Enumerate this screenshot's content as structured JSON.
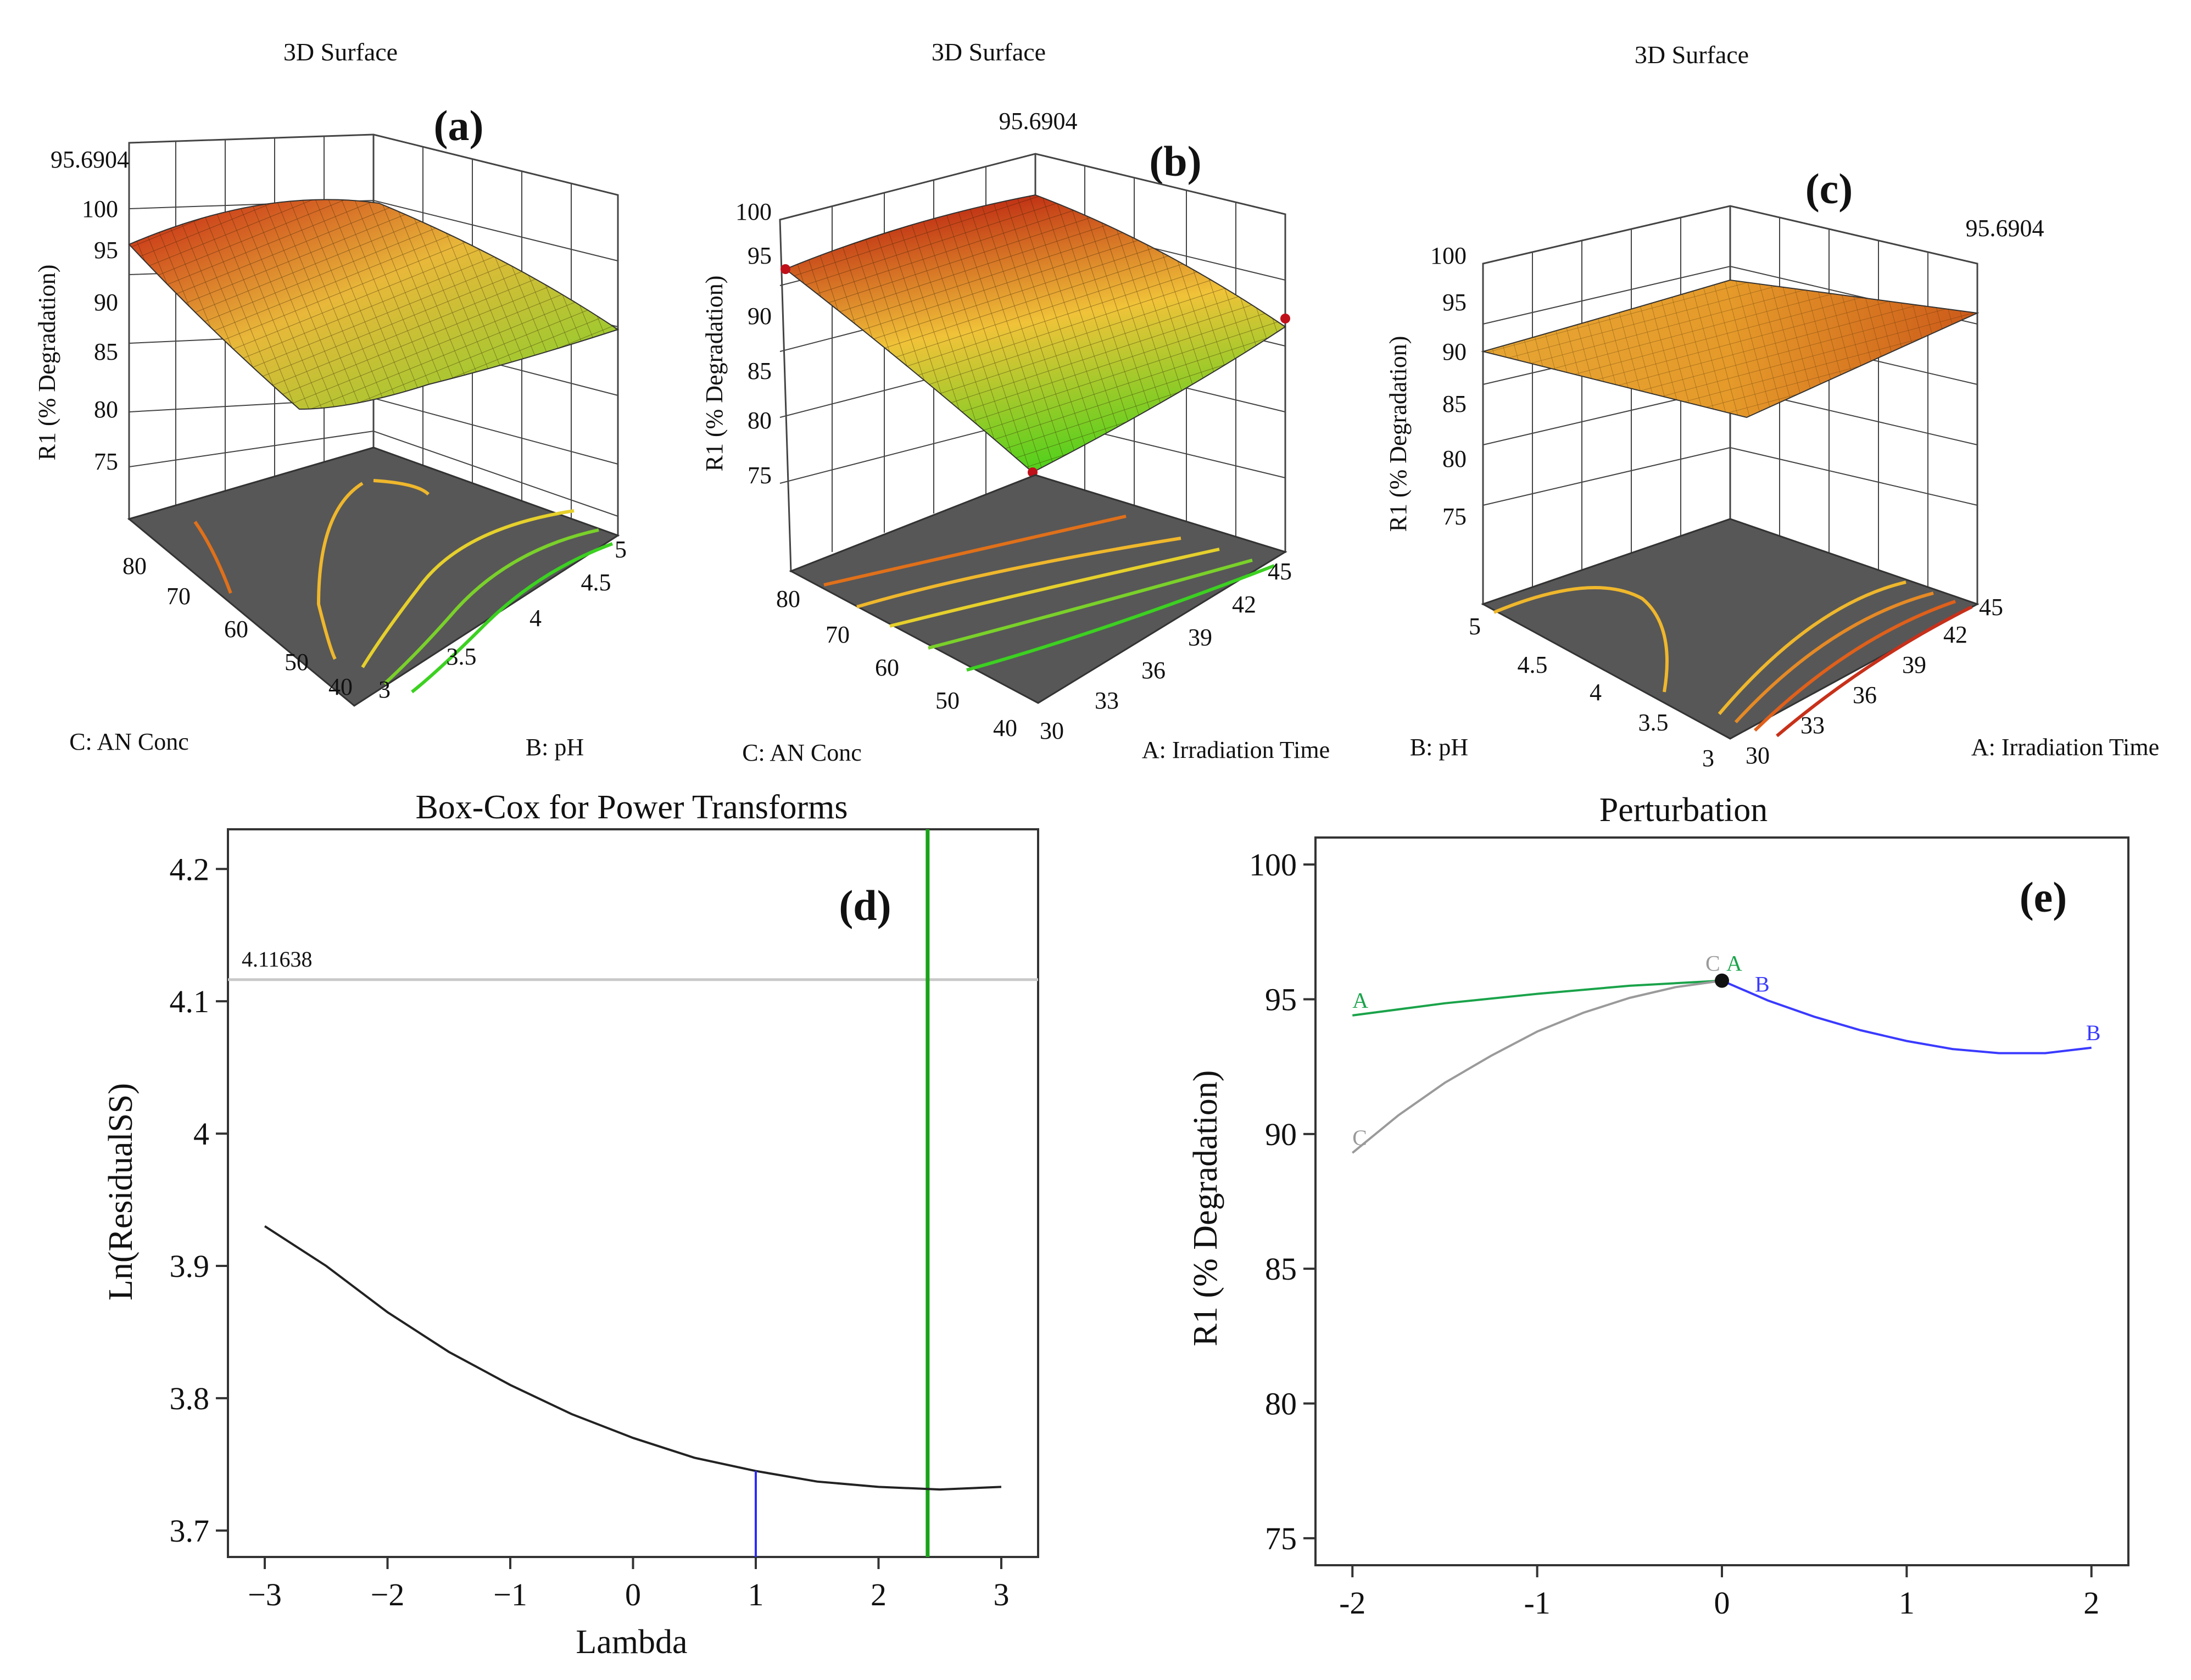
{
  "chart_data": [
    {
      "panel": "(a)",
      "type": "surface3d",
      "title": "3D Surface",
      "zlabel": "R1 (% Degradation)",
      "zticks": [
        75,
        80,
        85,
        90,
        95,
        100
      ],
      "peak_label": "95.6904",
      "left_axis": {
        "label": "C: AN Conc",
        "ticks": [
          "80",
          "70",
          "60",
          "50",
          "40"
        ]
      },
      "right_axis": {
        "label": "B: pH",
        "ticks": [
          "3",
          "3.5",
          "4",
          "4.5",
          "5"
        ]
      },
      "corner_values": {
        "back": 95,
        "left": 94,
        "front": 89,
        "right": 87
      }
    },
    {
      "panel": "(b)",
      "type": "surface3d",
      "title": "3D Surface",
      "zlabel": "R1 (% Degradation)",
      "zticks": [
        75,
        80,
        85,
        90,
        95,
        100
      ],
      "peak_label": "95.6904",
      "left_axis": {
        "label": "C: AN Conc",
        "ticks": [
          "80",
          "70",
          "60",
          "50",
          "40"
        ]
      },
      "right_axis": {
        "label": "A: Irradiation Time",
        "ticks": [
          "30",
          "33",
          "36",
          "39",
          "42",
          "45"
        ]
      },
      "corner_values": {
        "back": 99,
        "left": 94,
        "front": 76,
        "right": 90
      }
    },
    {
      "panel": "(c)",
      "type": "surface3d",
      "title": "3D Surface",
      "zlabel": "R1 (% Degradation)",
      "zticks": [
        75,
        80,
        85,
        90,
        95,
        100
      ],
      "peak_label": "95.6904",
      "left_axis": {
        "label": "B: pH",
        "ticks": [
          "5",
          "4.5",
          "4",
          "3.5",
          "3"
        ]
      },
      "right_axis": {
        "label": "A: Irradiation Time",
        "ticks": [
          "30",
          "33",
          "36",
          "39",
          "42",
          "45"
        ]
      },
      "corner_values": {
        "back": 95,
        "left": 90,
        "front": 90,
        "right": 95
      }
    },
    {
      "panel": "(d)",
      "type": "line",
      "title": "Box-Cox for Power Transforms",
      "xlabel": "Lambda",
      "ylabel": "Ln(ResidualSS)",
      "xlim": [
        -3.3,
        3.3
      ],
      "ylim": [
        3.68,
        4.23
      ],
      "xticks": [
        -3,
        -2,
        -1,
        0,
        1,
        2,
        3
      ],
      "xtick_labels": [
        "−3",
        "−2",
        "−1",
        "0",
        "1",
        "2",
        "3"
      ],
      "yticks": [
        3.7,
        3.8,
        3.9,
        4,
        4.1,
        4.2
      ],
      "ytick_labels": [
        "3.7",
        "3.8",
        "3.9",
        "4",
        "4.1",
        "4.2"
      ],
      "reference_line": {
        "y": 4.11638,
        "label": "4.11638",
        "color": "#c8c8c8"
      },
      "current_lambda": {
        "x": 1,
        "color": "#2b2bff"
      },
      "best_lambda": {
        "x": 2.4,
        "color": "#1aa31a"
      },
      "series": [
        {
          "x": [
            -3,
            -2.5,
            -2,
            -1.5,
            -1,
            -0.5,
            0,
            0.5,
            1,
            1.5,
            2,
            2.5,
            3
          ],
          "values": [
            3.93,
            3.9,
            3.865,
            3.835,
            3.81,
            3.788,
            3.77,
            3.755,
            3.745,
            3.737,
            3.733,
            3.731,
            3.733
          ],
          "color": "#222222"
        }
      ]
    },
    {
      "panel": "(e)",
      "type": "line",
      "title": "Perturbation",
      "xlabel": "",
      "ylabel": "R1 (% Degradation)",
      "xlim": [
        -2.2,
        2.2
      ],
      "ylim": [
        74,
        101
      ],
      "xticks": [
        -2,
        -1,
        0,
        1,
        2
      ],
      "xtick_labels": [
        "-2",
        "-1",
        "0",
        "1",
        "2"
      ],
      "yticks": [
        75,
        80,
        85,
        90,
        95,
        100
      ],
      "ytick_labels": [
        "75",
        "80",
        "85",
        "90",
        "95",
        "100"
      ],
      "reference_point": {
        "x": 0,
        "y": 95.69
      },
      "series": [
        {
          "name": "A",
          "color": "#1aa34a",
          "x": [
            -2,
            -1.5,
            -1,
            -0.5,
            0
          ],
          "values": [
            94.4,
            94.85,
            95.2,
            95.5,
            95.69
          ],
          "end_labels": true
        },
        {
          "name": "B",
          "color": "#3a3aff",
          "x": [
            0,
            0.25,
            0.5,
            0.75,
            1,
            1.25,
            1.5,
            1.75,
            2
          ],
          "values": [
            95.69,
            94.95,
            94.35,
            93.85,
            93.45,
            93.15,
            93.0,
            93.0,
            93.2
          ],
          "end_labels": true
        },
        {
          "name": "C",
          "color": "#9a9a9a",
          "x": [
            -2,
            -1.75,
            -1.5,
            -1.25,
            -1,
            -0.75,
            -0.5,
            -0.25,
            0
          ],
          "values": [
            89.3,
            90.7,
            91.9,
            92.9,
            93.8,
            94.5,
            95.05,
            95.45,
            95.69
          ],
          "end_labels": true
        }
      ]
    }
  ]
}
